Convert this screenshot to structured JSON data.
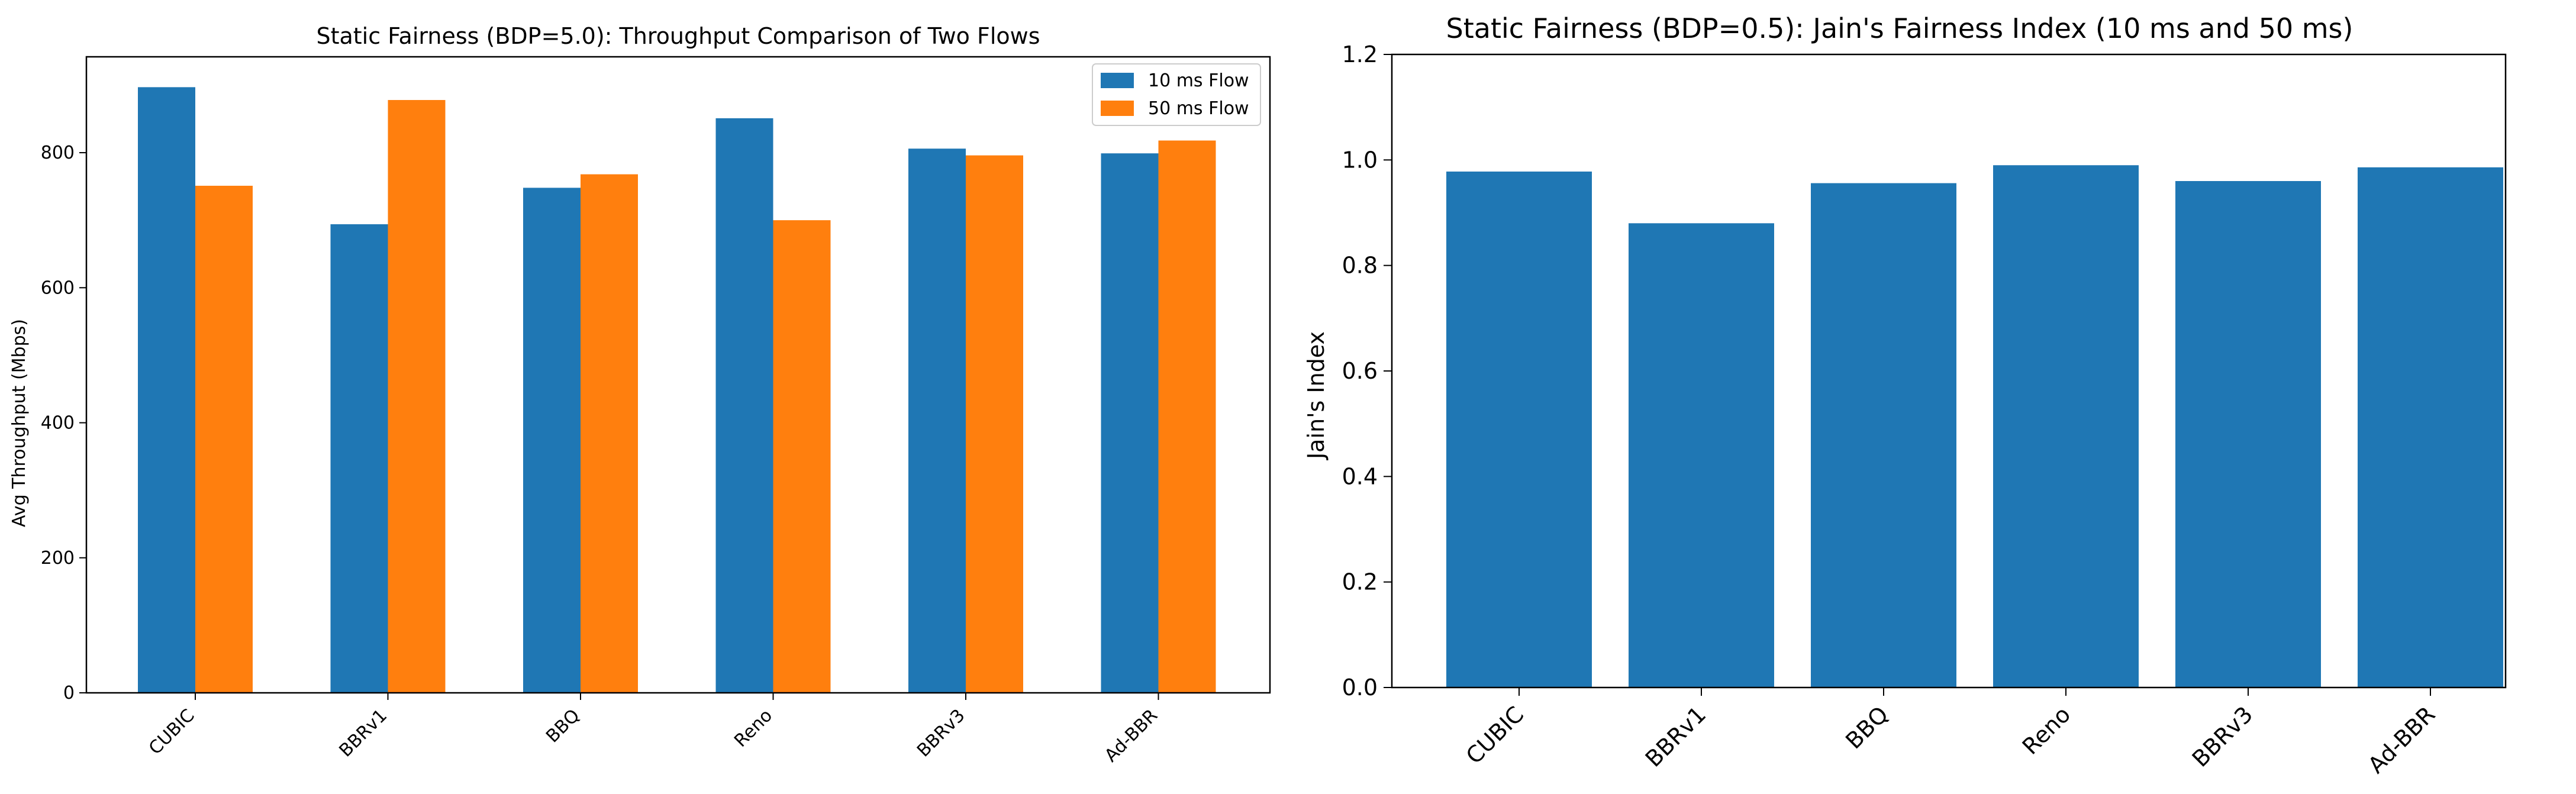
{
  "colors": {
    "series_10ms": "#1f77b4",
    "series_50ms": "#ff7f0e",
    "axis": "#000000",
    "background": "#ffffff"
  },
  "chart_data": [
    {
      "type": "bar",
      "title": "Static Fairness (BDP=5.0): Throughput Comparison of Two Flows",
      "xlabel": "",
      "ylabel": "Avg Throughput (Mbps)",
      "categories": [
        "CUBIC",
        "BBRv1",
        "BBQ",
        "Reno",
        "BBRv3",
        "Ad-BBR"
      ],
      "series": [
        {
          "name": "10 ms Flow",
          "values": [
            897,
            694,
            748,
            851,
            806,
            799
          ]
        },
        {
          "name": "50 ms Flow",
          "values": [
            751,
            878,
            768,
            700,
            796,
            818
          ]
        }
      ],
      "ylim": [
        0,
        942
      ],
      "yticks": [
        0,
        200,
        400,
        600,
        800
      ],
      "ytick_labels": [
        "0",
        "200",
        "400",
        "600",
        "800"
      ],
      "legend": "top-right",
      "grid": false
    },
    {
      "type": "bar",
      "title": "Static Fairness (BDP=0.5): Jain's Fairness Index (10 ms and 50 ms)",
      "xlabel": "",
      "ylabel": "Jain's Index",
      "categories": [
        "CUBIC",
        "BBRv1",
        "BBQ",
        "Reno",
        "BBRv3",
        "Ad-BBR"
      ],
      "values": [
        0.978,
        0.88,
        0.956,
        0.99,
        0.96,
        0.986
      ],
      "ylim": [
        0,
        1.2
      ],
      "yticks": [
        0,
        0.2,
        0.4,
        0.6,
        0.8,
        1.0,
        1.2
      ],
      "ytick_labels": [
        "0.0",
        "0.2",
        "0.4",
        "0.6",
        "0.8",
        "1.0",
        "1.2"
      ],
      "grid": false
    }
  ]
}
